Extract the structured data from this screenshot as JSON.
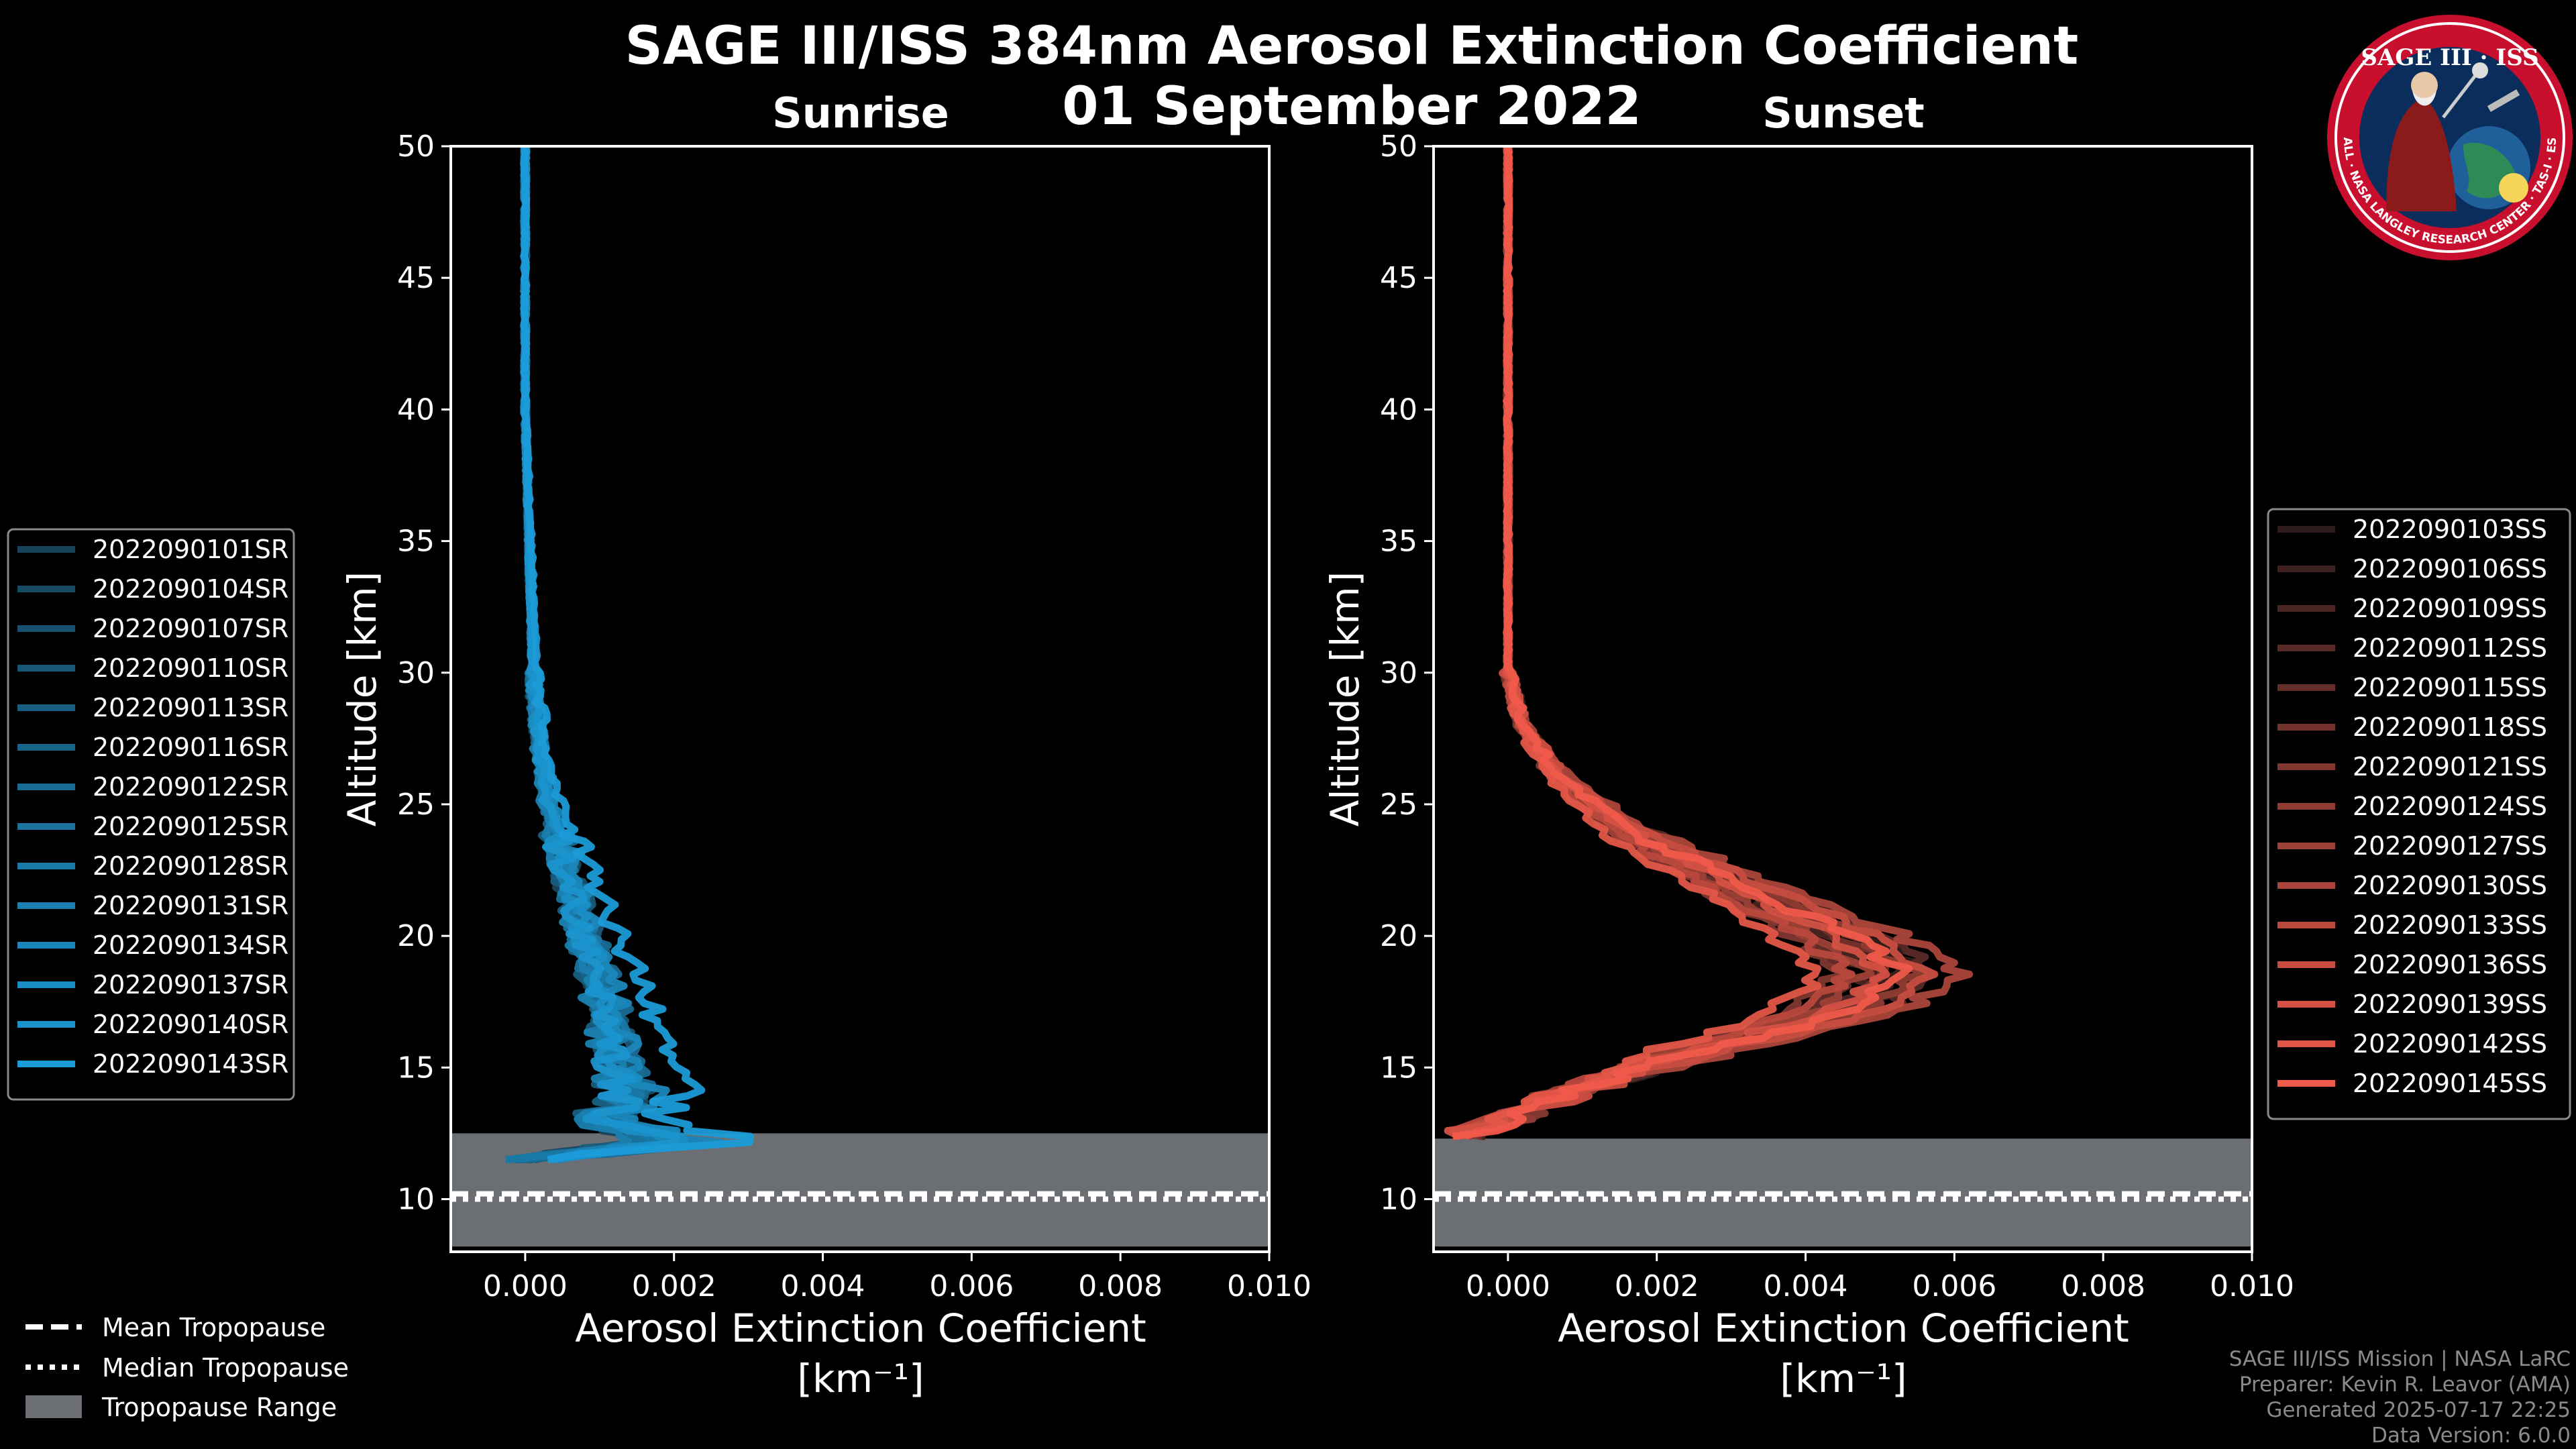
{
  "header": {
    "title": "SAGE III/ISS 384nm Aerosol Extinction Coefficient",
    "date": "01 September 2022"
  },
  "logo": {
    "top_text": "SAGE III · ISS",
    "ring_text": "BALL · NASA LANGLEY RESEARCH CENTER · TAS-I · ESA",
    "colors": {
      "ring": "#c8102e",
      "field": "#0b2d5c",
      "earth": "#2e8b57"
    }
  },
  "credits": {
    "line1": "SAGE III/ISS Mission | NASA LaRC",
    "line2": "Preparer: Kevin R. Leavor (AMA)",
    "line3": "Generated 2025-07-17 22:25",
    "line4": "Data Version: 6.0.0"
  },
  "tropopause_legend": {
    "mean": "Mean Tropopause",
    "median": "Median Tropopause",
    "range": "Tropopause Range"
  },
  "chart_data": [
    {
      "type": "line",
      "title": "Sunrise",
      "xlabel": "Aerosol Extinction Coefficient",
      "xunit": "[km⁻¹]",
      "ylabel": "Altitude [km]",
      "xlim": [
        -0.001,
        0.01
      ],
      "ylim": [
        8,
        50
      ],
      "xticks": [
        0.0,
        0.002,
        0.004,
        0.006,
        0.008,
        0.01
      ],
      "xtick_labels": [
        "0.000",
        "0.002",
        "0.004",
        "0.006",
        "0.008",
        "0.010"
      ],
      "yticks": [
        10,
        15,
        20,
        25,
        30,
        35,
        40,
        45,
        50
      ],
      "ytick_labels": [
        "10",
        "15",
        "20",
        "25",
        "30",
        "35",
        "40",
        "45",
        "50"
      ],
      "base_color": "#1b9bd7",
      "tropopause": {
        "range": [
          8.2,
          12.5
        ],
        "mean": 10.2,
        "median": 10.0
      },
      "profile_shape": {
        "altitudes": [
          50,
          40,
          30,
          27,
          25,
          23,
          21,
          19,
          17,
          15,
          14,
          13,
          12.2,
          11.5
        ],
        "extinction": [
          0.0,
          0.0,
          0.0001,
          0.0002,
          0.0003,
          0.0005,
          0.0007,
          0.0009,
          0.0011,
          0.0012,
          0.0014,
          0.001,
          0.002,
          0.0001
        ]
      },
      "series": [
        {
          "name": "2022090101SR",
          "scale": 0.92
        },
        {
          "name": "2022090104SR",
          "scale": 1.05
        },
        {
          "name": "2022090107SR",
          "scale": 0.98
        },
        {
          "name": "2022090110SR",
          "scale": 1.1
        },
        {
          "name": "2022090113SR",
          "scale": 0.88
        },
        {
          "name": "2022090116SR",
          "scale": 1.02
        },
        {
          "name": "2022090122SR",
          "scale": 1.15
        },
        {
          "name": "2022090125SR",
          "scale": 0.95
        },
        {
          "name": "2022090128SR",
          "scale": 1.08
        },
        {
          "name": "2022090131SR",
          "scale": 0.9
        },
        {
          "name": "2022090134SR",
          "scale": 1.2
        },
        {
          "name": "2022090137SR",
          "scale": 1.0
        },
        {
          "name": "2022090140SR",
          "scale": 0.97
        },
        {
          "name": "2022090143SR",
          "scale": 1.55
        }
      ]
    },
    {
      "type": "line",
      "title": "Sunset",
      "xlabel": "Aerosol Extinction Coefficient",
      "xunit": "[km⁻¹]",
      "ylabel": "Altitude [km]",
      "xlim": [
        -0.001,
        0.01
      ],
      "ylim": [
        8,
        50
      ],
      "xticks": [
        0.0,
        0.002,
        0.004,
        0.006,
        0.008,
        0.01
      ],
      "xtick_labels": [
        "0.000",
        "0.002",
        "0.004",
        "0.006",
        "0.008",
        "0.010"
      ],
      "yticks": [
        10,
        15,
        20,
        25,
        30,
        35,
        40,
        45,
        50
      ],
      "ytick_labels": [
        "10",
        "15",
        "20",
        "25",
        "30",
        "35",
        "40",
        "45",
        "50"
      ],
      "base_color": "#f05a4a",
      "tropopause": {
        "range": [
          8.2,
          12.3
        ],
        "mean": 10.2,
        "median": 10.0
      },
      "profile_shape": {
        "altitudes": [
          50,
          40,
          30,
          28,
          26,
          24,
          22,
          20,
          18.5,
          17,
          16,
          15,
          14,
          13,
          12.5
        ],
        "extinction": [
          0.0,
          0.0,
          0.0,
          0.0002,
          0.0007,
          0.0016,
          0.003,
          0.0045,
          0.0052,
          0.0044,
          0.003,
          0.0018,
          0.0008,
          0.0,
          -0.0006
        ]
      },
      "series": [
        {
          "name": "2022090103SS",
          "scale": 1.08
        },
        {
          "name": "2022090106SS",
          "scale": 1.02
        },
        {
          "name": "2022090109SS",
          "scale": 0.95
        },
        {
          "name": "2022090112SS",
          "scale": 1.12
        },
        {
          "name": "2022090115SS",
          "scale": 0.9
        },
        {
          "name": "2022090118SS",
          "scale": 1.0
        },
        {
          "name": "2022090121SS",
          "scale": 0.85
        },
        {
          "name": "2022090124SS",
          "scale": 1.05
        },
        {
          "name": "2022090127SS",
          "scale": 0.92
        },
        {
          "name": "2022090130SS",
          "scale": 1.18
        },
        {
          "name": "2022090133SS",
          "scale": 0.88
        },
        {
          "name": "2022090136SS",
          "scale": 1.1
        },
        {
          "name": "2022090139SS",
          "scale": 0.98
        },
        {
          "name": "2022090142SS",
          "scale": 0.8
        },
        {
          "name": "2022090145SS",
          "scale": 1.03
        }
      ]
    }
  ]
}
